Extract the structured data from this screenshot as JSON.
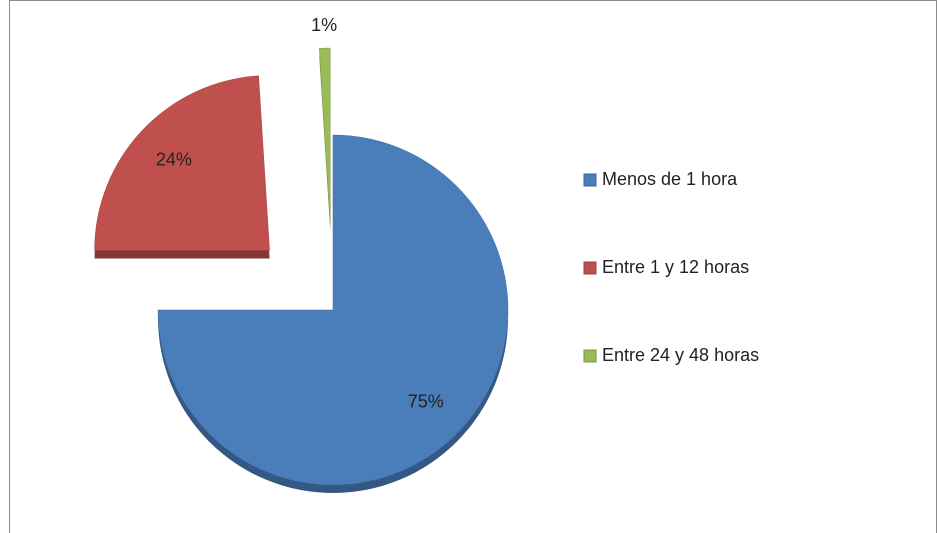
{
  "chart_data": {
    "type": "pie",
    "categories": [
      "Menos de 1 hora",
      "Entre 1 y 12 horas",
      "Entre 24 y 48 horas"
    ],
    "values": [
      75,
      24,
      1
    ],
    "value_labels": [
      "75%",
      "24%",
      "1%"
    ],
    "colors": [
      "#4a7ebb",
      "#c0504d",
      "#9bbb59"
    ],
    "legend": "right"
  }
}
